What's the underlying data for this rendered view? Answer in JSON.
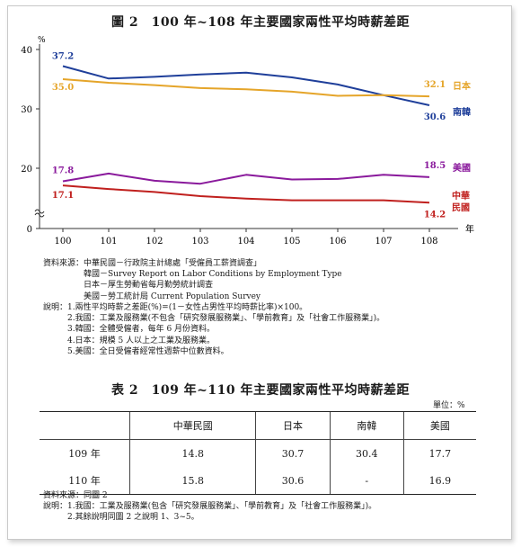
{
  "chart_title": "圖 2　100 年~108 年主要國家兩性平均時薪差距",
  "chart_data": {
    "type": "line",
    "x": [
      100,
      101,
      102,
      103,
      104,
      105,
      106,
      107,
      108
    ],
    "xlabel": "年",
    "ylabel": "%",
    "ylim": [
      0,
      40
    ],
    "yticks": [
      0,
      20,
      30,
      40
    ],
    "axis_break": true,
    "grid": false,
    "series": [
      {
        "name": "南韓",
        "color": "#1f3f9a",
        "values": [
          37.2,
          35.1,
          35.4,
          35.8,
          36.1,
          35.3,
          34.1,
          32.3,
          30.6
        ],
        "start_label": "37.2",
        "end_label": "30.6"
      },
      {
        "name": "日本",
        "color": "#e5a52a",
        "values": [
          35.0,
          34.4,
          34.0,
          33.5,
          33.3,
          32.9,
          32.2,
          32.3,
          32.1
        ],
        "start_label": "35.0",
        "end_label": "32.1"
      },
      {
        "name": "美國",
        "color": "#8a1a9c",
        "values": [
          17.8,
          19.1,
          17.9,
          17.4,
          18.9,
          18.1,
          18.2,
          18.9,
          18.5
        ],
        "start_label": "17.8",
        "end_label": "18.5"
      },
      {
        "name": "中華民國",
        "color": "#c0201e",
        "values": [
          17.1,
          16.5,
          16.0,
          15.3,
          14.9,
          14.6,
          14.6,
          14.6,
          14.2
        ],
        "start_label": "17.1",
        "end_label": "14.2",
        "legend_lines": [
          "中華",
          "民國"
        ]
      }
    ]
  },
  "source_1": "資料來源：中華民國－行政院主計總處「受僱員工薪資調查」\n　　　　　韓國－Survey Report on Labor Conditions by Employment Type\n　　　　　日本－厚生勞動省每月勤勞統計調查\n　　　　　美國－勞工統計局 Current Population Survey",
  "notes_1": "說明：1.兩性平均時薪之差距(%)=(1－女性占男性平均時薪比率)×100。\n　　　2.我國：工業及服務業(不包含「研究發展服務業」、「學前教育」及「社會工作服務業」)。\n　　　3.韓國：全體受僱者，每年 6 月份資料。\n　　　4.日本：規模 5 人以上之工業及服務業。\n　　　5.美國：全日受僱者經常性週薪中位數資料。",
  "table_title": "表 2　109 年~110 年主要國家兩性平均時薪差距",
  "table_unit": "單位：%",
  "table": {
    "headers": [
      "",
      "中華民國",
      "日本",
      "南韓",
      "美國"
    ],
    "rows": [
      {
        "year": "109 年",
        "cells": [
          "14.8",
          "30.7",
          "30.4",
          "17.7"
        ]
      },
      {
        "year": "110 年",
        "cells": [
          "15.8",
          "30.6",
          "-",
          "16.9"
        ]
      }
    ]
  },
  "source_2": "資料來源：同圖 2",
  "notes_2": "說明：1.我國：工業及服務業(包含「研究發展服務業」、「學前教育」及「社會工作服務業」)。\n　　　2.其餘說明同圖 2 之說明 1、3~5。"
}
